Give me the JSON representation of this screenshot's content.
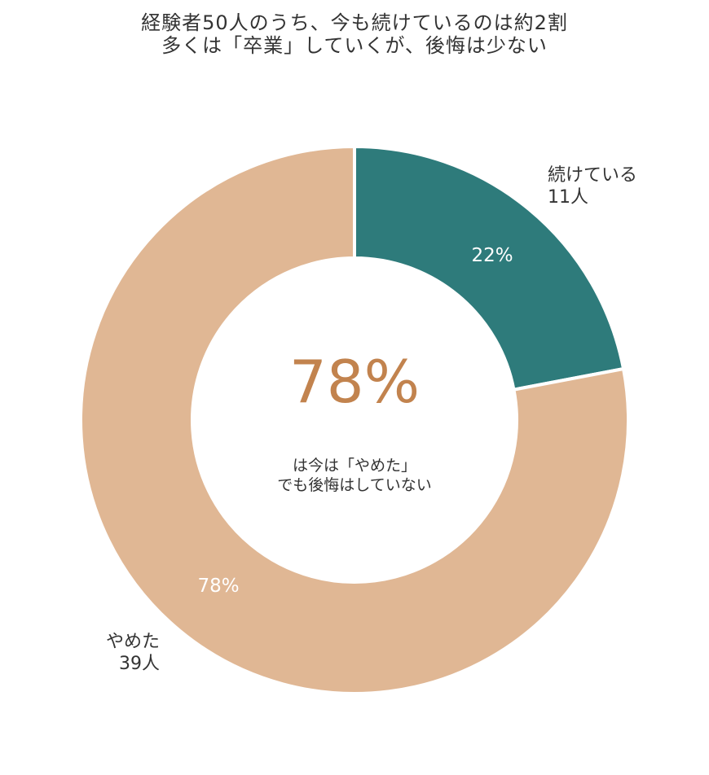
{
  "chart_data": {
    "type": "pie",
    "style": "donut",
    "title": "経験者50人のうち、今も続けているのは約2割",
    "subtitle": "多くは「卒業」していくが、後悔は少ない",
    "slices": [
      {
        "label": "続けている",
        "count_label": "11人",
        "value": 11,
        "percent_label": "22%",
        "color": "#2e7b7b"
      },
      {
        "label": "やめた",
        "count_label": "39人",
        "value": 39,
        "percent_label": "78%",
        "color": "#e0b794"
      }
    ],
    "center": {
      "big_value": "78%",
      "big_color": "#c2834e",
      "caption_line1": "は今は「やめた」",
      "caption_line2": "でも後悔はしていない"
    },
    "start_angle_deg": 0,
    "direction": "clockwise"
  }
}
